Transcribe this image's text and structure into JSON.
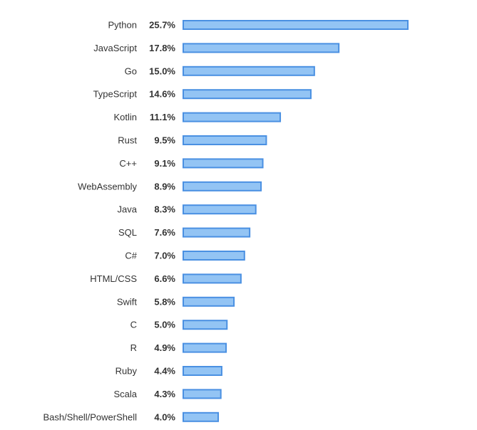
{
  "colors": {
    "bar_fill": "#93c4f4",
    "bar_stroke": "#4a90e2",
    "text": "#333333",
    "background": "#ffffff"
  },
  "chart_data": {
    "type": "bar",
    "orientation": "horizontal",
    "title": "",
    "xlabel": "",
    "ylabel": "",
    "grid": false,
    "legend": "none",
    "xlim": [
      0,
      25.7
    ],
    "categories": [
      "Python",
      "JavaScript",
      "Go",
      "TypeScript",
      "Kotlin",
      "Rust",
      "C++",
      "WebAssembly",
      "Java",
      "SQL",
      "C#",
      "HTML/CSS",
      "Swift",
      "C",
      "R",
      "Ruby",
      "Scala",
      "Bash/Shell/PowerShell"
    ],
    "values": [
      25.7,
      17.8,
      15.0,
      14.6,
      11.1,
      9.5,
      9.1,
      8.9,
      8.3,
      7.6,
      7.0,
      6.6,
      5.8,
      5.0,
      4.9,
      4.4,
      4.3,
      4.0
    ],
    "value_labels": [
      "25.7%",
      "17.8%",
      "15.0%",
      "14.6%",
      "11.1%",
      "9.5%",
      "9.1%",
      "8.9%",
      "8.3%",
      "7.6%",
      "7.0%",
      "6.6%",
      "5.8%",
      "5.0%",
      "4.9%",
      "4.4%",
      "4.3%",
      "4.0%"
    ]
  }
}
